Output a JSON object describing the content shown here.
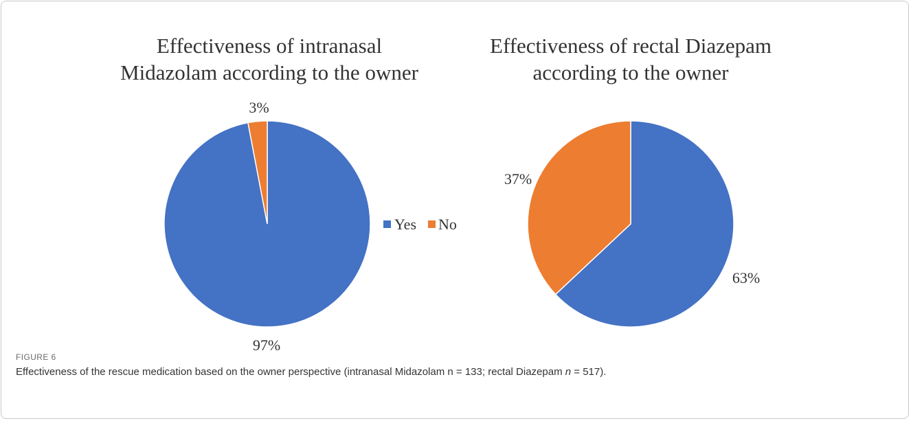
{
  "chart_data": [
    {
      "type": "pie",
      "title_lines": [
        "Effectiveness of intranasal",
        "Midazolam according to the owner"
      ],
      "categories": [
        "Yes",
        "No"
      ],
      "values": [
        97,
        3
      ],
      "labels": [
        "97%",
        "3%"
      ],
      "colors": [
        "#4472C4",
        "#ED7D31"
      ]
    },
    {
      "type": "pie",
      "title_lines": [
        "Effectiveness of rectal Diazepam",
        "according to the owner"
      ],
      "categories": [
        "Yes",
        "No"
      ],
      "values": [
        63,
        37
      ],
      "labels": [
        "63%",
        "37%"
      ],
      "colors": [
        "#4472C4",
        "#ED7D31"
      ]
    }
  ],
  "legend": {
    "items": [
      {
        "label": "Yes",
        "color": "#4472C4"
      },
      {
        "label": "No",
        "color": "#ED7D31"
      }
    ]
  },
  "figure": {
    "label": "FIGURE 6",
    "caption_a": "Effectiveness of the rescue medication based on the owner perspective (intranasal Midazolam n = 133; rectal Diazepam ",
    "caption_n": "n",
    "caption_b": " = 517)."
  }
}
